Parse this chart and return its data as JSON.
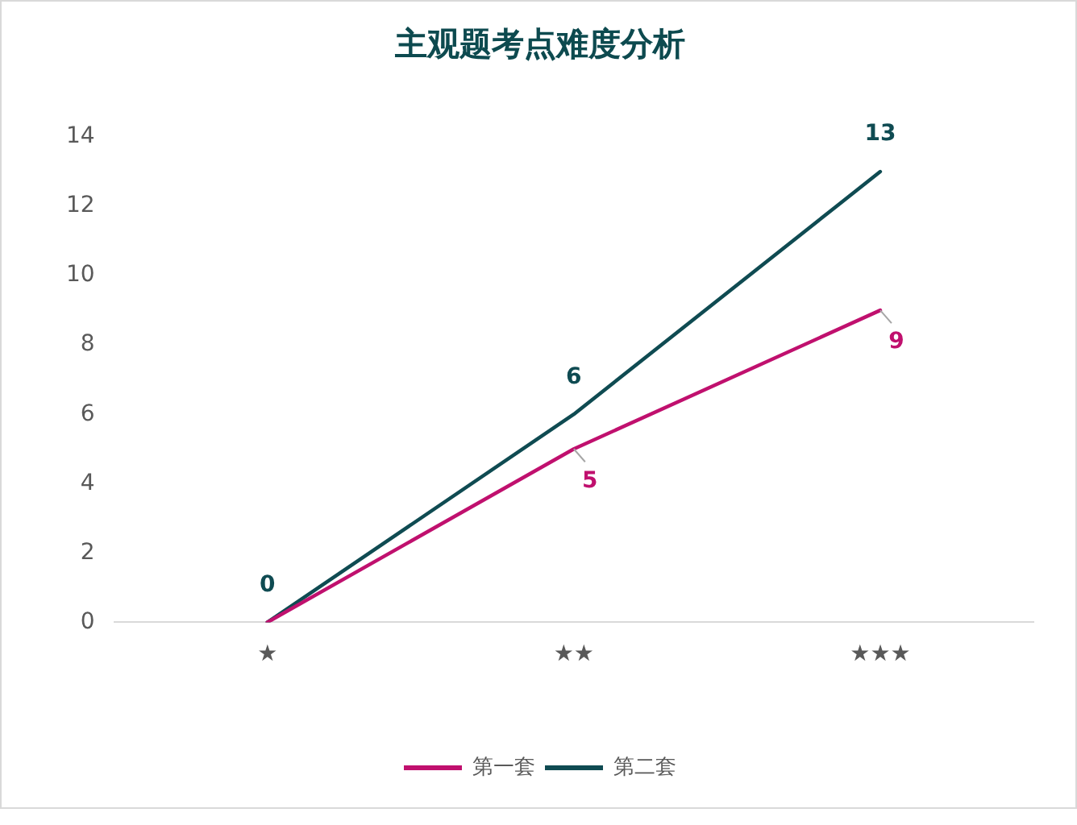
{
  "chart_data": {
    "type": "line",
    "title": "主观题考点难度分析",
    "categories": [
      "★",
      "★★",
      "★★★"
    ],
    "series": [
      {
        "name": "第一套",
        "color": "#c0106e",
        "values": [
          0,
          5,
          9
        ],
        "value_labels": [
          null,
          "5",
          "9"
        ]
      },
      {
        "name": "第二套",
        "color": "#0f4b52",
        "values": [
          0,
          6,
          13
        ],
        "value_labels": [
          "0",
          "6",
          "13"
        ]
      }
    ],
    "ylim": [
      0,
      14
    ],
    "yticks": [
      0,
      2,
      4,
      6,
      8,
      10,
      12,
      14
    ],
    "grid": false,
    "legend": "bottom",
    "marker": "none",
    "line_style": "solid"
  }
}
